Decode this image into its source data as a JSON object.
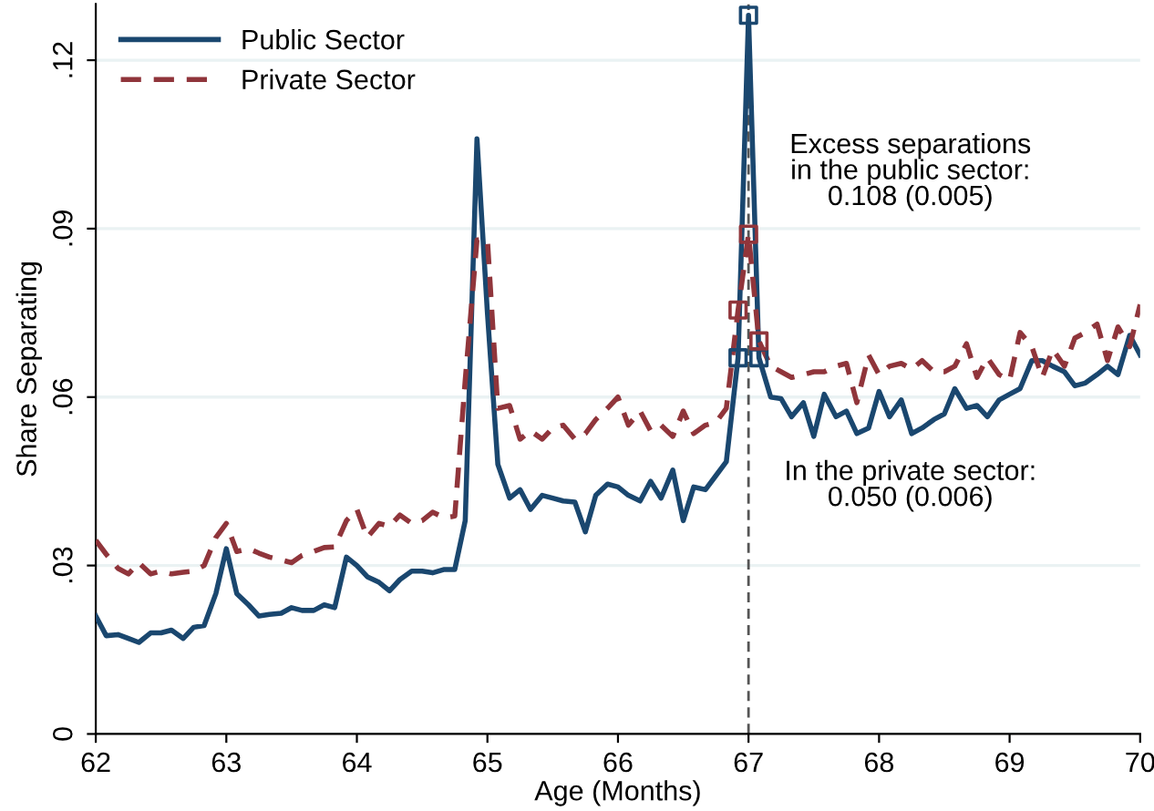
{
  "chart_data": {
    "type": "line",
    "xlabel": "Age (Months)",
    "ylabel": "Share Separating",
    "x": [
      62,
      62.08,
      62.17,
      62.25,
      62.33,
      62.42,
      62.5,
      62.58,
      62.67,
      62.75,
      62.83,
      62.92,
      63,
      63.08,
      63.17,
      63.25,
      63.33,
      63.42,
      63.5,
      63.58,
      63.67,
      63.75,
      63.83,
      63.92,
      64,
      64.08,
      64.17,
      64.25,
      64.33,
      64.42,
      64.5,
      64.58,
      64.67,
      64.75,
      64.83,
      64.92,
      65,
      65.08,
      65.17,
      65.25,
      65.33,
      65.42,
      65.5,
      65.58,
      65.67,
      65.75,
      65.83,
      65.92,
      66,
      66.08,
      66.17,
      66.25,
      66.33,
      66.42,
      66.5,
      66.58,
      66.67,
      66.75,
      66.83,
      66.92,
      67,
      67.08,
      67.17,
      67.25,
      67.33,
      67.42,
      67.5,
      67.58,
      67.67,
      67.75,
      67.83,
      67.92,
      68,
      68.08,
      68.17,
      68.25,
      68.33,
      68.42,
      68.5,
      68.58,
      68.67,
      68.75,
      68.83,
      68.92,
      69,
      69.08,
      69.17,
      69.25,
      69.33,
      69.42,
      69.5,
      69.58,
      69.67,
      69.75,
      69.83,
      69.92,
      70
    ],
    "series": [
      {
        "name": "Public Sector",
        "color": "#1a476f",
        "line_style": "solid",
        "values": [
          0.021,
          0.0175,
          0.0177,
          0.017,
          0.0163,
          0.018,
          0.018,
          0.0185,
          0.017,
          0.019,
          0.0193,
          0.025,
          0.033,
          0.025,
          0.023,
          0.021,
          0.0213,
          0.0215,
          0.0225,
          0.022,
          0.022,
          0.023,
          0.0225,
          0.0315,
          0.03,
          0.028,
          0.027,
          0.0255,
          0.0275,
          0.029,
          0.029,
          0.0287,
          0.0293,
          0.0293,
          0.038,
          0.106,
          0.075,
          0.048,
          0.042,
          0.0435,
          0.04,
          0.0425,
          0.042,
          0.0415,
          0.0413,
          0.036,
          0.0425,
          0.0445,
          0.044,
          0.0425,
          0.0415,
          0.045,
          0.042,
          0.047,
          0.038,
          0.044,
          0.0435,
          0.046,
          0.0485,
          0.067,
          0.128,
          0.067,
          0.06,
          0.0597,
          0.0565,
          0.059,
          0.053,
          0.0605,
          0.0565,
          0.0575,
          0.0535,
          0.0545,
          0.061,
          0.0565,
          0.0595,
          0.0535,
          0.0545,
          0.056,
          0.057,
          0.0615,
          0.058,
          0.0585,
          0.0565,
          0.0595,
          0.0605,
          0.0615,
          0.0665,
          0.0665,
          0.0655,
          0.0645,
          0.062,
          0.0625,
          0.064,
          0.0655,
          0.064,
          0.071,
          0.0675
        ]
      },
      {
        "name": "Private Sector",
        "color": "#90353b",
        "line_style": "dashed",
        "values": [
          0.0345,
          0.032,
          0.0295,
          0.0285,
          0.0305,
          0.0285,
          0.029,
          0.0285,
          0.0288,
          0.029,
          0.03,
          0.035,
          0.0375,
          0.0325,
          0.033,
          0.0322,
          0.0315,
          0.031,
          0.0305,
          0.0318,
          0.0325,
          0.0332,
          0.0333,
          0.038,
          0.04,
          0.035,
          0.0375,
          0.037,
          0.039,
          0.0375,
          0.038,
          0.0395,
          0.0385,
          0.0388,
          0.063,
          0.088,
          0.088,
          0.058,
          0.0585,
          0.0525,
          0.054,
          0.0525,
          0.0545,
          0.055,
          0.0525,
          0.0535,
          0.056,
          0.058,
          0.06,
          0.055,
          0.0575,
          0.054,
          0.055,
          0.053,
          0.0575,
          0.0535,
          0.055,
          0.0555,
          0.058,
          0.0755,
          0.089,
          0.07,
          0.0655,
          0.0645,
          0.0635,
          0.064,
          0.0645,
          0.0645,
          0.0655,
          0.066,
          0.059,
          0.0675,
          0.064,
          0.0655,
          0.066,
          0.065,
          0.0665,
          0.0645,
          0.0645,
          0.0655,
          0.0695,
          0.0635,
          0.067,
          0.064,
          0.063,
          0.0715,
          0.069,
          0.0635,
          0.0685,
          0.0655,
          0.0705,
          0.0715,
          0.073,
          0.0665,
          0.0725,
          0.069,
          0.0765
        ]
      },
      {
        "type": "scatter",
        "marker": "square",
        "color": "#1a476f",
        "x": [
          66.92,
          67,
          67.08
        ],
        "values": [
          0.067,
          0.128,
          0.067
        ]
      },
      {
        "type": "scatter",
        "marker": "square",
        "color": "#90353b",
        "x": [
          66.92,
          67,
          67.08
        ],
        "values": [
          0.0755,
          0.089,
          0.07
        ]
      }
    ],
    "xlim": [
      62,
      70
    ],
    "xticks": [
      62,
      63,
      64,
      65,
      66,
      67,
      68,
      69,
      70
    ],
    "ylim": [
      0,
      0.13
    ],
    "yticks": [
      0,
      {
        "value": 0.03,
        "label": ".03"
      },
      {
        "value": 0.06,
        "label": ".06"
      },
      {
        "value": 0.09,
        "label": ".09"
      },
      {
        "value": 0.12,
        "label": ".12"
      }
    ],
    "grid": "y",
    "legend": "top left",
    "ref_lines": [
      {
        "axis": "x",
        "value": 67,
        "color": "#555555",
        "line_style": "dashed"
      }
    ],
    "annotations": [
      "Excess separations\nin the public sector:\n0.108 (0.005)",
      "In the private sector:\n0.050 (0.006)"
    ]
  }
}
